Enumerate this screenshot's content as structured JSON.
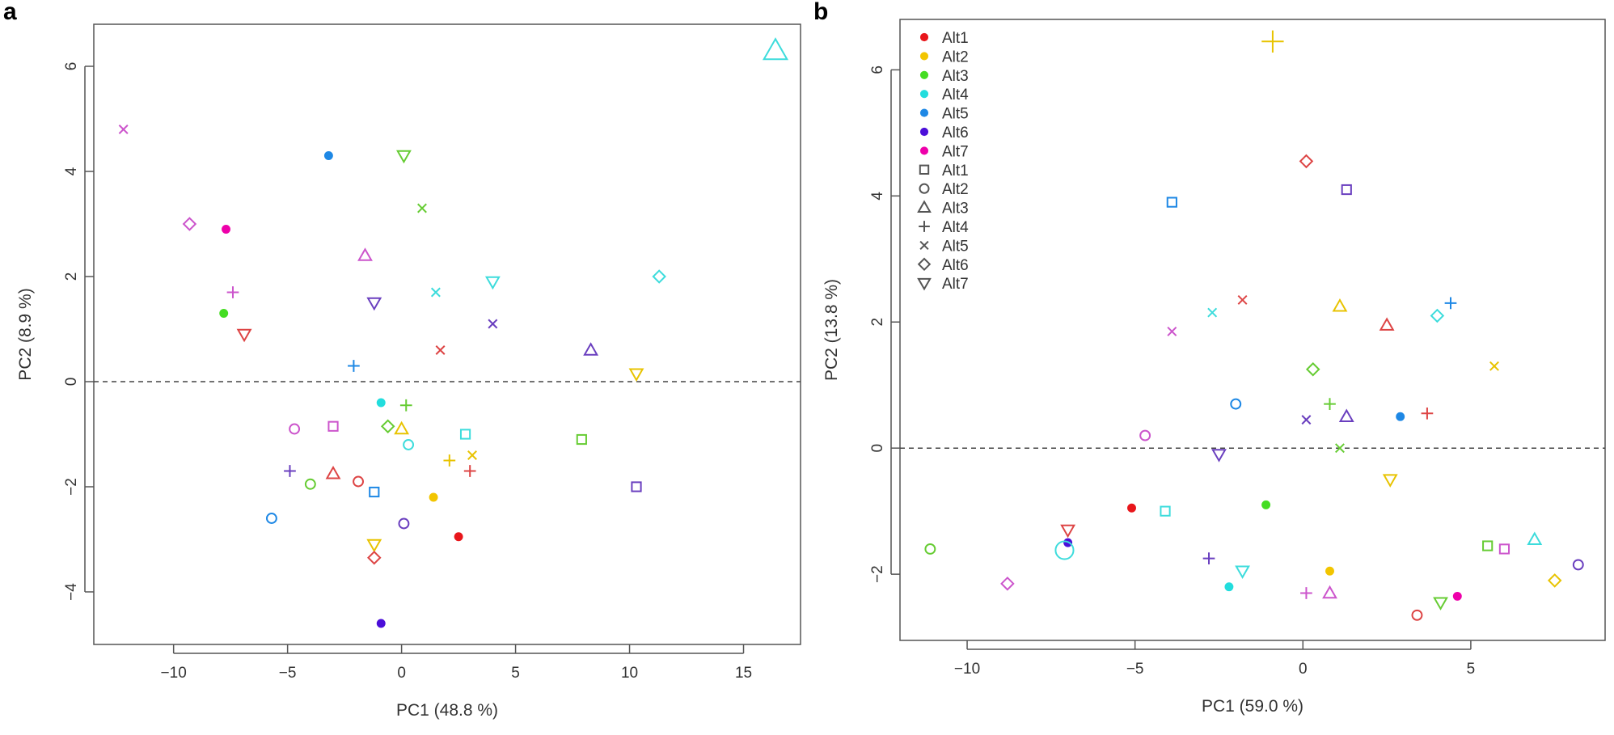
{
  "chart_data": [
    {
      "panel_label": "a",
      "type": "scatter",
      "xlabel": "PC1 (48.8 %)",
      "ylabel": "PC2 (8.9 %)",
      "xlim": [
        -13.5,
        17.5
      ],
      "ylim": [
        -5.0,
        6.8
      ],
      "xticks": [
        -10,
        -5,
        0,
        5,
        10,
        15
      ],
      "xtick_labels": [
        "−10",
        "−5",
        "0",
        "5",
        "10",
        "15"
      ],
      "yticks": [
        -4,
        -2,
        0,
        2,
        4,
        6
      ],
      "ytick_labels": [
        "−4",
        "−2",
        "0",
        "2",
        "4",
        "6"
      ],
      "reference_line": {
        "y": 0,
        "style": "dashed"
      },
      "points": [
        {
          "x": 16.4,
          "y": 6.3,
          "shape": "triangle",
          "color": "#3ddcdc",
          "big": true
        },
        {
          "x": -12.2,
          "y": 4.8,
          "shape": "x",
          "color": "#cc55cc"
        },
        {
          "x": -9.3,
          "y": 3.0,
          "shape": "diamond",
          "color": "#cc55cc"
        },
        {
          "x": -7.7,
          "y": 2.9,
          "shape": "dot",
          "color": "#ee00aa"
        },
        {
          "x": -7.4,
          "y": 1.7,
          "shape": "plus",
          "color": "#cc55cc"
        },
        {
          "x": -7.8,
          "y": 1.3,
          "shape": "dot",
          "color": "#44dd22"
        },
        {
          "x": -6.9,
          "y": 0.9,
          "shape": "triangle-down",
          "color": "#dd4444"
        },
        {
          "x": -3.2,
          "y": 4.3,
          "shape": "dot",
          "color": "#1e88e5"
        },
        {
          "x": 0.1,
          "y": 4.3,
          "shape": "triangle-down",
          "color": "#66cc33"
        },
        {
          "x": 0.9,
          "y": 3.3,
          "shape": "x",
          "color": "#66cc33"
        },
        {
          "x": -1.6,
          "y": 2.4,
          "shape": "triangle",
          "color": "#cc55cc"
        },
        {
          "x": -1.2,
          "y": 1.5,
          "shape": "triangle-down",
          "color": "#6a3fbf"
        },
        {
          "x": 1.5,
          "y": 1.7,
          "shape": "x",
          "color": "#3ddcdc"
        },
        {
          "x": 4.0,
          "y": 1.9,
          "shape": "triangle-down",
          "color": "#3ddcdc"
        },
        {
          "x": 11.3,
          "y": 2.0,
          "shape": "diamond",
          "color": "#3ddcdc"
        },
        {
          "x": 4.0,
          "y": 1.1,
          "shape": "x",
          "color": "#6a3fbf"
        },
        {
          "x": 8.3,
          "y": 0.6,
          "shape": "triangle",
          "color": "#6a3fbf"
        },
        {
          "x": 1.7,
          "y": 0.6,
          "shape": "x",
          "color": "#dd4444"
        },
        {
          "x": -2.1,
          "y": 0.3,
          "shape": "plus",
          "color": "#1e88e5"
        },
        {
          "x": 10.3,
          "y": 0.15,
          "shape": "triangle-down",
          "color": "#e8c300"
        },
        {
          "x": -0.9,
          "y": -0.4,
          "shape": "dot",
          "color": "#22dddd"
        },
        {
          "x": 0.2,
          "y": -0.45,
          "shape": "plus",
          "color": "#66cc33"
        },
        {
          "x": -4.7,
          "y": -0.9,
          "shape": "circle",
          "color": "#cc55cc"
        },
        {
          "x": -3.0,
          "y": -0.85,
          "shape": "square",
          "color": "#cc55cc"
        },
        {
          "x": -0.6,
          "y": -0.85,
          "shape": "diamond",
          "color": "#66cc33"
        },
        {
          "x": 0.0,
          "y": -0.9,
          "shape": "triangle",
          "color": "#e8c300"
        },
        {
          "x": 2.8,
          "y": -1.0,
          "shape": "square",
          "color": "#3ddcdc"
        },
        {
          "x": 0.3,
          "y": -1.2,
          "shape": "circle",
          "color": "#3ddcdc"
        },
        {
          "x": 7.9,
          "y": -1.1,
          "shape": "square",
          "color": "#66cc33"
        },
        {
          "x": 3.1,
          "y": -1.4,
          "shape": "x",
          "color": "#e8c300"
        },
        {
          "x": 2.1,
          "y": -1.5,
          "shape": "plus",
          "color": "#e8c300"
        },
        {
          "x": 3.0,
          "y": -1.7,
          "shape": "plus",
          "color": "#dd4444"
        },
        {
          "x": -4.9,
          "y": -1.7,
          "shape": "plus",
          "color": "#6a3fbf"
        },
        {
          "x": -3.0,
          "y": -1.75,
          "shape": "triangle",
          "color": "#dd4444"
        },
        {
          "x": -4.0,
          "y": -1.95,
          "shape": "circle",
          "color": "#66cc33"
        },
        {
          "x": -1.9,
          "y": -1.9,
          "shape": "circle",
          "color": "#dd4444"
        },
        {
          "x": 10.3,
          "y": -2.0,
          "shape": "square",
          "color": "#6a3fbf"
        },
        {
          "x": -1.2,
          "y": -2.1,
          "shape": "square",
          "color": "#1e88e5"
        },
        {
          "x": 1.4,
          "y": -2.2,
          "shape": "dot",
          "color": "#f2c500"
        },
        {
          "x": -5.7,
          "y": -2.6,
          "shape": "circle",
          "color": "#1e88e5"
        },
        {
          "x": 0.1,
          "y": -2.7,
          "shape": "circle",
          "color": "#6a3fbf"
        },
        {
          "x": 2.5,
          "y": -2.95,
          "shape": "dot",
          "color": "#e8161b"
        },
        {
          "x": -1.2,
          "y": -3.1,
          "shape": "triangle-down",
          "color": "#e8c300"
        },
        {
          "x": -1.2,
          "y": -3.35,
          "shape": "diamond",
          "color": "#dd4444"
        },
        {
          "x": -0.9,
          "y": -4.6,
          "shape": "dot",
          "color": "#4b0fd9"
        }
      ]
    },
    {
      "panel_label": "b",
      "type": "scatter",
      "xlabel": "PC1 (59.0 %)",
      "ylabel": "PC2 (13.8 %)",
      "xlim": [
        -12.0,
        9.0
      ],
      "ylim": [
        -3.05,
        6.8
      ],
      "xticks": [
        -10,
        -5,
        0,
        5
      ],
      "xtick_labels": [
        "−10",
        "−5",
        "0",
        "5"
      ],
      "yticks": [
        -2,
        0,
        2,
        4,
        6
      ],
      "ytick_labels": [
        "−2",
        "0",
        "2",
        "4",
        "6"
      ],
      "reference_line": {
        "y": 0,
        "style": "dashed"
      },
      "legend": {
        "position": "top-left",
        "entries": [
          {
            "label": "Alt1",
            "shape": "dot",
            "color": "#e8161b"
          },
          {
            "label": "Alt2",
            "shape": "dot",
            "color": "#f2c500"
          },
          {
            "label": "Alt3",
            "shape": "dot",
            "color": "#44dd22"
          },
          {
            "label": "Alt4",
            "shape": "dot",
            "color": "#22dddd"
          },
          {
            "label": "Alt5",
            "shape": "dot",
            "color": "#1e88e5"
          },
          {
            "label": "Alt6",
            "shape": "dot",
            "color": "#4b0fd9"
          },
          {
            "label": "Alt7",
            "shape": "dot",
            "color": "#ee00aa"
          },
          {
            "label": "Alt1",
            "shape": "square",
            "color": "#555555"
          },
          {
            "label": "Alt2",
            "shape": "circle",
            "color": "#555555"
          },
          {
            "label": "Alt3",
            "shape": "triangle",
            "color": "#555555"
          },
          {
            "label": "Alt4",
            "shape": "plus",
            "color": "#555555"
          },
          {
            "label": "Alt5",
            "shape": "x",
            "color": "#555555"
          },
          {
            "label": "Alt6",
            "shape": "diamond",
            "color": "#555555"
          },
          {
            "label": "Alt7",
            "shape": "triangle-down",
            "color": "#555555"
          }
        ]
      },
      "points": [
        {
          "x": -0.9,
          "y": 6.45,
          "shape": "plus",
          "color": "#e8c300",
          "big": true
        },
        {
          "x": 0.1,
          "y": 4.55,
          "shape": "diamond",
          "color": "#dd4444"
        },
        {
          "x": 1.3,
          "y": 4.1,
          "shape": "square",
          "color": "#6a3fbf"
        },
        {
          "x": -3.9,
          "y": 3.9,
          "shape": "square",
          "color": "#1e88e5"
        },
        {
          "x": -1.8,
          "y": 2.35,
          "shape": "x",
          "color": "#dd4444"
        },
        {
          "x": -2.7,
          "y": 2.15,
          "shape": "x",
          "color": "#3ddcdc"
        },
        {
          "x": 1.1,
          "y": 2.25,
          "shape": "triangle",
          "color": "#e8c300"
        },
        {
          "x": 4.4,
          "y": 2.3,
          "shape": "plus",
          "color": "#1e88e5"
        },
        {
          "x": 4.0,
          "y": 2.1,
          "shape": "diamond",
          "color": "#3ddcdc"
        },
        {
          "x": 2.5,
          "y": 1.95,
          "shape": "triangle",
          "color": "#dd4444"
        },
        {
          "x": -3.9,
          "y": 1.85,
          "shape": "x",
          "color": "#cc55cc"
        },
        {
          "x": 5.7,
          "y": 1.3,
          "shape": "x",
          "color": "#e8c300"
        },
        {
          "x": 0.3,
          "y": 1.25,
          "shape": "diamond",
          "color": "#66cc33"
        },
        {
          "x": 0.8,
          "y": 0.7,
          "shape": "plus",
          "color": "#66cc33"
        },
        {
          "x": -2.0,
          "y": 0.7,
          "shape": "circle",
          "color": "#1e88e5"
        },
        {
          "x": 2.9,
          "y": 0.5,
          "shape": "dot",
          "color": "#1e88e5"
        },
        {
          "x": 3.7,
          "y": 0.55,
          "shape": "plus",
          "color": "#dd4444"
        },
        {
          "x": 1.3,
          "y": 0.5,
          "shape": "triangle",
          "color": "#6a3fbf"
        },
        {
          "x": 0.1,
          "y": 0.45,
          "shape": "x",
          "color": "#6a3fbf"
        },
        {
          "x": -4.7,
          "y": 0.2,
          "shape": "circle",
          "color": "#cc55cc"
        },
        {
          "x": 1.1,
          "y": 0.0,
          "shape": "x",
          "color": "#66cc33"
        },
        {
          "x": -2.5,
          "y": -0.1,
          "shape": "triangle-down",
          "color": "#6a3fbf"
        },
        {
          "x": 2.6,
          "y": -0.5,
          "shape": "triangle-down",
          "color": "#e8c300"
        },
        {
          "x": -5.1,
          "y": -0.95,
          "shape": "dot",
          "color": "#e8161b"
        },
        {
          "x": -4.1,
          "y": -1.0,
          "shape": "square",
          "color": "#3ddcdc"
        },
        {
          "x": -1.1,
          "y": -0.9,
          "shape": "dot",
          "color": "#44dd22"
        },
        {
          "x": 6.9,
          "y": -1.45,
          "shape": "triangle",
          "color": "#3ddcdc"
        },
        {
          "x": 5.5,
          "y": -1.55,
          "shape": "square",
          "color": "#66cc33"
        },
        {
          "x": 6.0,
          "y": -1.6,
          "shape": "square",
          "color": "#cc55cc"
        },
        {
          "x": -11.1,
          "y": -1.6,
          "shape": "circle",
          "color": "#66cc33"
        },
        {
          "x": -7.0,
          "y": -1.3,
          "shape": "triangle-down",
          "color": "#dd4444"
        },
        {
          "x": -7.0,
          "y": -1.5,
          "shape": "dot",
          "color": "#4b0fd9"
        },
        {
          "x": -7.1,
          "y": -1.62,
          "shape": "circle",
          "color": "#3ddcdc",
          "big": true
        },
        {
          "x": -2.8,
          "y": -1.75,
          "shape": "plus",
          "color": "#6a3fbf"
        },
        {
          "x": -1.8,
          "y": -1.95,
          "shape": "triangle-down",
          "color": "#3ddcdc"
        },
        {
          "x": 0.8,
          "y": -1.95,
          "shape": "dot",
          "color": "#f2c500"
        },
        {
          "x": 8.2,
          "y": -1.85,
          "shape": "circle",
          "color": "#6a3fbf"
        },
        {
          "x": 7.5,
          "y": -2.1,
          "shape": "diamond",
          "color": "#e8c300"
        },
        {
          "x": -8.8,
          "y": -2.15,
          "shape": "diamond",
          "color": "#cc55cc"
        },
        {
          "x": -2.2,
          "y": -2.2,
          "shape": "dot",
          "color": "#22dddd"
        },
        {
          "x": 0.1,
          "y": -2.3,
          "shape": "plus",
          "color": "#cc55cc"
        },
        {
          "x": 0.8,
          "y": -2.3,
          "shape": "triangle",
          "color": "#cc55cc"
        },
        {
          "x": 4.6,
          "y": -2.35,
          "shape": "dot",
          "color": "#ee00aa"
        },
        {
          "x": 4.1,
          "y": -2.45,
          "shape": "triangle-down",
          "color": "#66cc33"
        },
        {
          "x": 3.4,
          "y": -2.65,
          "shape": "circle",
          "color": "#dd4444"
        }
      ]
    }
  ]
}
